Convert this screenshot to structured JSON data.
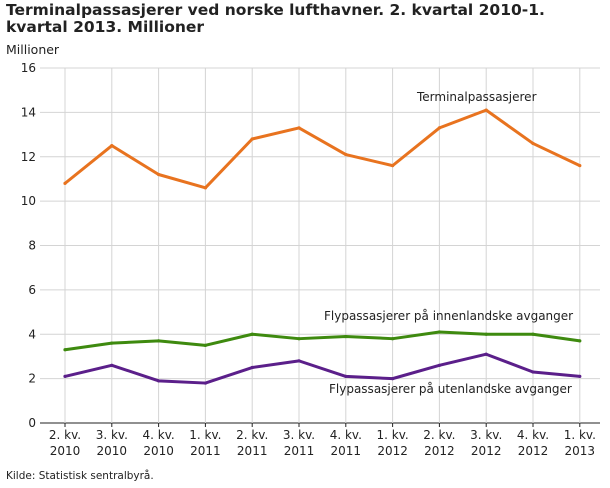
{
  "chart_data": {
    "type": "line",
    "title": "Terminalpassasjerer ved norske lufthavner. 2. kvartal 2010-1. kvartal 2013. Millioner",
    "ylabel": "Millioner",
    "xlabel": "",
    "ylim": [
      0,
      16
    ],
    "yticks": [
      "0",
      "2",
      "4",
      "6",
      "8",
      "10",
      "12",
      "14",
      "16"
    ],
    "grid": true,
    "categories": [
      [
        "2. kv.",
        "2010"
      ],
      [
        "3. kv.",
        "2010"
      ],
      [
        "4. kv.",
        "2010"
      ],
      [
        "1. kv.",
        "2011"
      ],
      [
        "2. kv.",
        "2011"
      ],
      [
        "3. kv.",
        "2011"
      ],
      [
        "4. kv.",
        "2011"
      ],
      [
        "1. kv.",
        "2012"
      ],
      [
        "2. kv.",
        "2012"
      ],
      [
        "3. kv.",
        "2012"
      ],
      [
        "4. kv.",
        "2012"
      ],
      [
        "1. kv.",
        "2013"
      ]
    ],
    "series": [
      {
        "name": "Terminalpassasjerer",
        "color": "#e8731f",
        "values": [
          10.8,
          12.5,
          11.2,
          10.6,
          12.8,
          13.3,
          12.1,
          11.6,
          13.3,
          14.1,
          12.6,
          11.6
        ]
      },
      {
        "name": "Flypassasjerer på innenlandske avganger",
        "color": "#3e8a0f",
        "values": [
          3.3,
          3.6,
          3.7,
          3.5,
          4.0,
          3.8,
          3.9,
          3.8,
          4.1,
          4.0,
          4.0,
          3.7
        ]
      },
      {
        "name": "Flypassasjerer på utenlandske avganger",
        "color": "#5b1f8a",
        "values": [
          2.1,
          2.6,
          1.9,
          1.8,
          2.5,
          2.8,
          2.1,
          2.0,
          2.6,
          3.1,
          2.3,
          2.1
        ]
      }
    ]
  },
  "source": "Kilde: Statistisk sentralbyrå."
}
